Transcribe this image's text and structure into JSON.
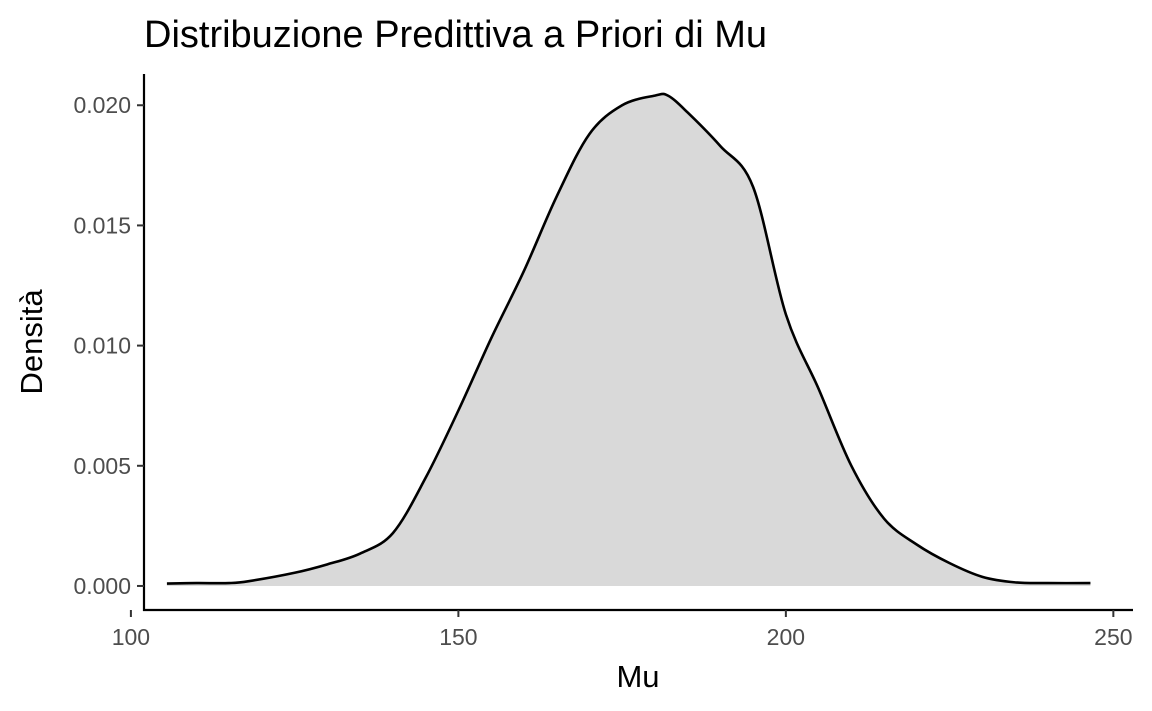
{
  "chart_data": {
    "type": "area",
    "title": "Distribuzione Predittiva a Priori di Mu",
    "xlabel": "Mu",
    "ylabel": "Densità",
    "xlim": [
      102,
      253
    ],
    "ylim": [
      -0.001,
      0.0213
    ],
    "x_ticks": [
      {
        "value": 100,
        "label": "100"
      },
      {
        "value": 150,
        "label": "150"
      },
      {
        "value": 200,
        "label": "200"
      },
      {
        "value": 250,
        "label": "250"
      }
    ],
    "y_ticks": [
      {
        "value": 0.0,
        "label": "0.000"
      },
      {
        "value": 0.005,
        "label": "0.005"
      },
      {
        "value": 0.01,
        "label": "0.010"
      },
      {
        "value": 0.015,
        "label": "0.015"
      },
      {
        "value": 0.02,
        "label": "0.020"
      }
    ],
    "fill_color": "#d9d9d9",
    "line_color": "#000000",
    "grid": false,
    "x": [
      105.5,
      110,
      115,
      118,
      125,
      130,
      135,
      140,
      145,
      150,
      155,
      160,
      165,
      170,
      175,
      180,
      182,
      185,
      190,
      195,
      200,
      205,
      210,
      215,
      220,
      225,
      230,
      235,
      240,
      246.5
    ],
    "y": [
      0.0001,
      0.00012,
      0.00012,
      0.0002,
      0.00055,
      0.0009,
      0.00135,
      0.0022,
      0.0045,
      0.0073,
      0.0103,
      0.0131,
      0.0162,
      0.0188,
      0.02,
      0.0204,
      0.0204,
      0.0197,
      0.0183,
      0.0166,
      0.0113,
      0.0082,
      0.005,
      0.0028,
      0.00172,
      0.00095,
      0.00038,
      0.00015,
      0.00012,
      0.00012
    ]
  }
}
